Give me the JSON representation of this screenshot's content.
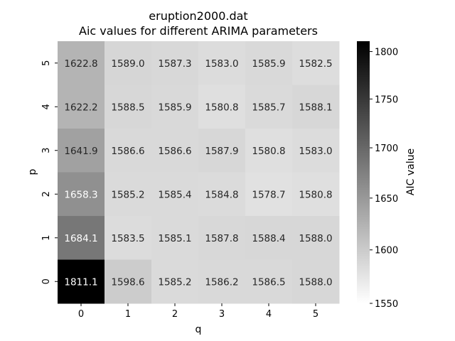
{
  "chart_data": {
    "type": "heatmap",
    "title": "eruption2000.dat",
    "subtitle": "Aic values for different ARIMA parameters",
    "xlabel": "q",
    "ylabel": "p",
    "x_categories": [
      "0",
      "1",
      "2",
      "3",
      "4",
      "5"
    ],
    "y_categories": [
      "5",
      "4",
      "3",
      "2",
      "1",
      "0"
    ],
    "values": [
      [
        1622.8,
        1589.0,
        1587.3,
        1583.0,
        1585.9,
        1582.5
      ],
      [
        1622.2,
        1588.5,
        1585.9,
        1580.8,
        1585.7,
        1588.1
      ],
      [
        1641.9,
        1586.6,
        1586.6,
        1587.9,
        1580.8,
        1583.0
      ],
      [
        1658.3,
        1585.2,
        1585.4,
        1584.8,
        1578.7,
        1580.8
      ],
      [
        1684.1,
        1583.5,
        1585.1,
        1587.8,
        1588.4,
        1588.0
      ],
      [
        1811.1,
        1598.6,
        1585.2,
        1586.2,
        1586.5,
        1588.0
      ]
    ],
    "colorbar": {
      "label": "AIC value",
      "scale": "log",
      "range": [
        1550,
        1811.1
      ],
      "colormap": "Greys",
      "ticks": [
        1550,
        1600,
        1650,
        1700,
        1750,
        1800
      ],
      "tick_labels": [
        "1550",
        "1600",
        "1650",
        "1700",
        "1750",
        "1800"
      ]
    }
  }
}
